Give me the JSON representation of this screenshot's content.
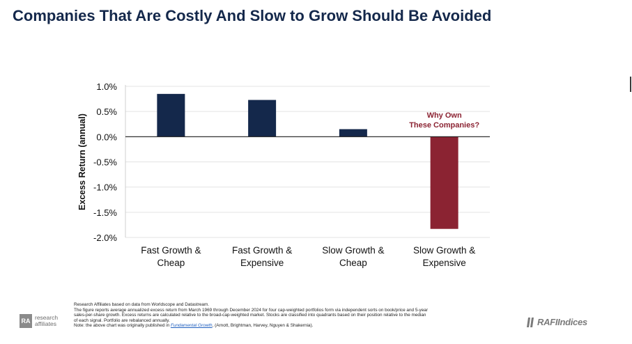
{
  "page": {
    "title": "Companies That Are Costly And Slow to Grow Should Be Avoided"
  },
  "chart_data": {
    "type": "bar",
    "categories": [
      [
        "Fast Growth &",
        "Cheap"
      ],
      [
        "Fast Growth &",
        "Expensive"
      ],
      [
        "Slow Growth &",
        "Cheap"
      ],
      [
        "Slow Growth &",
        "Expensive"
      ]
    ],
    "values": [
      0.85,
      0.73,
      0.15,
      -1.83
    ],
    "bar_colors": [
      "#14284b",
      "#14284b",
      "#14284b",
      "#8b2332"
    ],
    "ylabel": "Excess Return (annual)",
    "ylim": [
      -2.0,
      1.0
    ],
    "yticks": [
      1.0,
      0.5,
      0.0,
      -0.5,
      -1.0,
      -1.5,
      -2.0
    ],
    "ytick_labels": [
      "1.0%",
      "0.5%",
      "0.0%",
      "-0.5%",
      "-1.0%",
      "-1.5%",
      "-2.0%"
    ],
    "grid": true,
    "annotation": {
      "category_index": 3,
      "lines": [
        "Why Own",
        "These Companies?"
      ],
      "color": "#8b2332"
    }
  },
  "footnote": {
    "line1": "Research Affiliates based on data from Worldscope and Datastream.",
    "line2": "The figure reports average annualized excess return from March 1969 through December 2024 for four cap-weighted portfolios form via independent sorts on book/price and 5-year",
    "line3": "sales-per-share growth. Excess returns are calculated relative to the broad-cap-weighted market. Stocks are classified into quadrants based on their position relative to the median",
    "line4": "of each signal. Portfolio are rebalanced annually.",
    "note_prefix": "Note: the above chart was originally published in ",
    "note_link": "Fundamental Growth",
    "note_suffix": ", (Arnott, Brightman, Harvey, Nguyen & Shakernia)."
  },
  "logos": {
    "ra_mark": "RA",
    "ra_line1": "research",
    "ra_line2": "affiliates",
    "rafi": "RAFIIndices"
  }
}
